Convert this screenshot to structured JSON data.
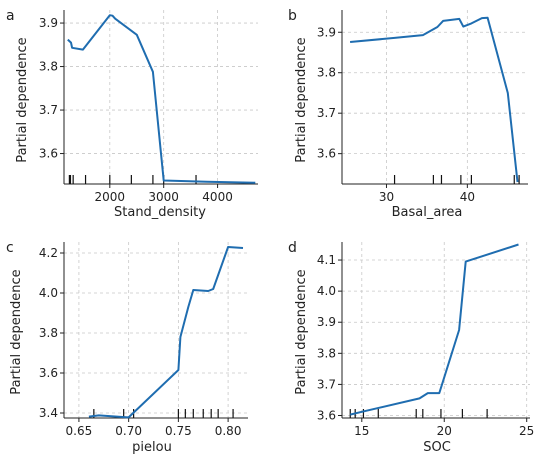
{
  "chart_data": [
    {
      "type": "line",
      "panel": "a",
      "xlabel": "Stand_density",
      "ylabel": "Partial dependence",
      "xlim": [
        1150,
        4750
      ],
      "ylim": [
        3.53,
        3.93
      ],
      "xticks": [
        2000,
        3000,
        4000
      ],
      "yticks": [
        3.6,
        3.7,
        3.8,
        3.9
      ],
      "grid": true,
      "color": "#1f6db0",
      "x": [
        1220,
        1280,
        1300,
        1500,
        2000,
        2050,
        2100,
        2500,
        2800,
        2950,
        3000,
        3800,
        4700
      ],
      "y": [
        3.862,
        3.855,
        3.843,
        3.839,
        3.918,
        3.917,
        3.91,
        3.873,
        3.788,
        3.6,
        3.538,
        3.535,
        3.533
      ],
      "rug": [
        1250,
        1270,
        1320,
        1550,
        2000,
        2400,
        2800,
        3000,
        3600
      ]
    },
    {
      "type": "line",
      "panel": "b",
      "xlabel": "Basal_area",
      "ylabel": "Partial dependence",
      "xlim": [
        24.5,
        47.5
      ],
      "ylim": [
        3.525,
        3.955
      ],
      "xticks": [
        30,
        40
      ],
      "yticks": [
        3.6,
        3.7,
        3.8,
        3.9
      ],
      "grid": true,
      "color": "#1f6db0",
      "x": [
        25.5,
        31,
        34.5,
        36.3,
        37,
        39,
        39.5,
        40.5,
        41.8,
        42.5,
        45,
        46.2
      ],
      "y": [
        3.876,
        3.886,
        3.893,
        3.913,
        3.928,
        3.933,
        3.914,
        3.922,
        3.935,
        3.936,
        3.75,
        3.53
      ],
      "rug": [
        31,
        35.8,
        36.8,
        39.2,
        40.5,
        45.8,
        46.4
      ]
    },
    {
      "type": "line",
      "panel": "c",
      "xlabel": "pielou",
      "ylabel": "Partial dependence",
      "xlim": [
        0.635,
        0.82
      ],
      "ylim": [
        3.375,
        4.255
      ],
      "xticks": [
        0.65,
        0.7,
        0.75,
        0.8
      ],
      "yticks": [
        3.4,
        3.6,
        3.8,
        4.0,
        4.2
      ],
      "grid": true,
      "color": "#1f6db0",
      "x": [
        0.66,
        0.67,
        0.7,
        0.75,
        0.752,
        0.76,
        0.765,
        0.78,
        0.785,
        0.8,
        0.815
      ],
      "y": [
        3.382,
        3.388,
        3.378,
        3.615,
        3.78,
        3.93,
        4.015,
        4.01,
        4.02,
        4.23,
        4.225
      ],
      "rug": [
        0.665,
        0.695,
        0.705,
        0.75,
        0.757,
        0.765,
        0.775,
        0.783,
        0.79,
        0.805
      ]
    },
    {
      "type": "line",
      "panel": "d",
      "xlabel": "SOC",
      "ylabel": "Partial dependence",
      "xlim": [
        13.8,
        25.2
      ],
      "ylim": [
        3.592,
        4.158
      ],
      "xticks": [
        15,
        20,
        25
      ],
      "yticks": [
        3.6,
        3.7,
        3.8,
        3.9,
        4.0,
        4.1
      ],
      "grid": true,
      "color": "#1f6db0",
      "x": [
        14.3,
        15,
        18.5,
        19,
        19.7,
        20.9,
        21.3,
        24.5
      ],
      "y": [
        3.603,
        3.612,
        3.655,
        3.672,
        3.672,
        3.875,
        4.095,
        4.15
      ],
      "rug": [
        14.3,
        14.6,
        15.1,
        16,
        18.3,
        18.7,
        19.8,
        21.1,
        22.6
      ]
    }
  ]
}
